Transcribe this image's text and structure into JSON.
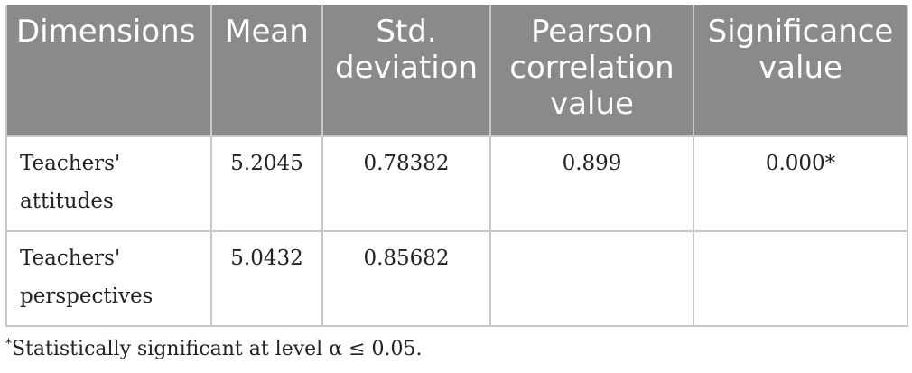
{
  "table": {
    "headers": [
      "Dimensions",
      "Mean",
      "Std. deviation",
      "Pearson correlation value",
      "Significance value"
    ],
    "rows": [
      [
        "Teachers' attitudes",
        "5.2045",
        "0.78382",
        "0.899",
        "0.000*"
      ],
      [
        "Teachers' perspectives",
        "5.0432",
        "0.85682",
        "",
        ""
      ]
    ]
  },
  "footnote": {
    "marker": "*",
    "text": "Statistically significant at level α  ≤ 0.05."
  },
  "colors": {
    "header_bg": "#8a8a8a",
    "header_text": "#ffffff",
    "border": "#c8c8c8"
  }
}
